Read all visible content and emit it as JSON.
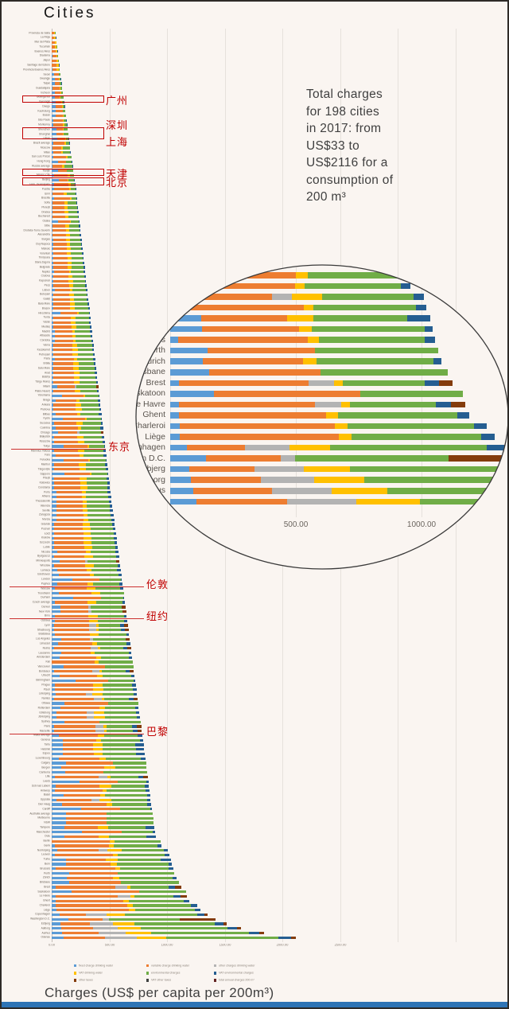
{
  "page": {
    "heading": "Cities",
    "axis_title": "Charges (US$ per capita per 200m³)",
    "footer_color": "#2E74B5",
    "background": "#FAF5F1",
    "annotation_color": "#C00000"
  },
  "title_block": {
    "text": "Total charges\nfor 198 cities\nin 2017: from\nUS$33 to\nUS$2116 for a\nconsumption of\n200 m³"
  },
  "legend": {
    "items": [
      {
        "label": "fixed charge drinking water",
        "color": "#5B9BD5"
      },
      {
        "label": "variable charge drinking water",
        "color": "#ED7D31"
      },
      {
        "label": "other charges drinking water",
        "color": "#B3B3B3"
      },
      {
        "label": "VAT drinking water",
        "color": "#FFC000"
      },
      {
        "label": "environmental charges",
        "color": "#70AD47"
      },
      {
        "label": "VAT environmental charges",
        "color": "#255E91"
      },
      {
        "label": "other taxes",
        "color": "#843C0C"
      },
      {
        "label": "VAT other taxes",
        "color": "#404040"
      },
      {
        "label": "total annual charges 200 m³",
        "color": "#632523"
      }
    ]
  },
  "annotations": {
    "color": "#C00000",
    "boxes": [
      {
        "rows": [
          15
        ],
        "labels": [
          "广州"
        ]
      },
      {
        "rows": [
          22,
          23
        ],
        "labels": [
          "深圳",
          "上海"
        ]
      },
      {
        "rows": [
          31
        ],
        "labels": [
          "天津"
        ]
      },
      {
        "rows": [
          33
        ],
        "labels": [
          "北京"
        ]
      }
    ],
    "lines": [
      {
        "row": 91,
        "label": "东京",
        "x1": 12,
        "x2": 131
      },
      {
        "row": 121,
        "label": "伦敦",
        "x1": 10,
        "x2": 179
      },
      {
        "row": 128,
        "label": "纽约",
        "x1": 10,
        "x2": 179
      },
      {
        "row": 153,
        "label": "巴黎",
        "x1": 10,
        "x2": 179
      }
    ]
  },
  "chart_data": {
    "type": "bar",
    "stacked": true,
    "orientation": "horizontal",
    "title": "Total charges for 198 cities in 2017: from US$33 to US$2116 for a consumption of 200 m³",
    "xlabel": "Charges (US$ per capita per 200m³)",
    "ylabel": "Cities",
    "xlim": [
      0,
      2500
    ],
    "x_ticks": [
      "0.00",
      "500.00",
      "1000.00",
      "1500.00",
      "2000.00",
      "2500.00"
    ],
    "inset_x_ticks": [
      "0.00",
      "500.00",
      "1000.00"
    ],
    "series_keys": [
      "fixed charge drinking water",
      "variable charge drinking water",
      "other charges drinking water",
      "VAT drinking water",
      "environmental charges",
      "VAT environmental charges",
      "other taxes"
    ],
    "colors": [
      "#5B9BD5",
      "#ED7D31",
      "#B3B3B3",
      "#FFC000",
      "#70AD47",
      "#255E91",
      "#843C0C"
    ],
    "patterns": {
      "arg": [
        0.05,
        0.56,
        0.0,
        0.3,
        0.07,
        0.02,
        0.0
      ],
      "kr": [
        0.3,
        0.49,
        0.0,
        0.03,
        0.16,
        0.02,
        0.0
      ],
      "cn": [
        0.3,
        0.38,
        0.0,
        0.03,
        0.27,
        0.02,
        0.0
      ],
      "latam": [
        0.09,
        0.63,
        0.0,
        0.08,
        0.18,
        0.02,
        0.0
      ],
      "eeu": [
        0.04,
        0.45,
        0.0,
        0.12,
        0.35,
        0.04,
        0.0
      ],
      "weu": [
        0.08,
        0.43,
        0.0,
        0.07,
        0.37,
        0.05,
        0.0
      ],
      "jp": [
        0.22,
        0.45,
        0.0,
        0.03,
        0.28,
        0.02,
        0.0
      ],
      "us": [
        0.12,
        0.37,
        0.04,
        0.0,
        0.42,
        0.0,
        0.05
      ],
      "uk": [
        0.29,
        0.39,
        0.0,
        0.0,
        0.3,
        0.02,
        0.0
      ],
      "fr": [
        0.03,
        0.46,
        0.09,
        0.03,
        0.29,
        0.05,
        0.05
      ],
      "dk": [
        0.05,
        0.17,
        0.13,
        0.12,
        0.46,
        0.05,
        0.02
      ],
      "se": [
        0.05,
        0.35,
        0.08,
        0.12,
        0.36,
        0.04,
        0.0
      ],
      "no": [
        0.1,
        0.45,
        0.0,
        0.12,
        0.33,
        0.0,
        0.0
      ],
      "fi": [
        0.12,
        0.33,
        0.0,
        0.1,
        0.36,
        0.09,
        0.0
      ],
      "ch": [
        0.12,
        0.37,
        0.0,
        0.05,
        0.43,
        0.03,
        0.0
      ],
      "be": [
        0.03,
        0.49,
        0.0,
        0.04,
        0.4,
        0.04,
        0.0
      ],
      "nl": [
        0.1,
        0.45,
        0.0,
        0.06,
        0.35,
        0.04,
        0.0
      ],
      "de": [
        0.0,
        0.53,
        0.0,
        0.05,
        0.42,
        0.0,
        0.0
      ],
      "au": [
        0.14,
        0.4,
        0.0,
        0.0,
        0.46,
        0.0,
        0.0
      ],
      "ca": [
        0.15,
        0.5,
        0.0,
        0.0,
        0.35,
        0.0,
        0.0
      ],
      "wdc": [
        0.1,
        0.21,
        0.04,
        0.0,
        0.43,
        0.0,
        0.22
      ]
    },
    "inset_first_row": 177,
    "cities": [
      [
        "Provincia de Salta",
        33,
        "arg"
      ],
      [
        "La Rioja",
        38,
        "arg"
      ],
      [
        "Mar del Plata",
        43,
        "arg"
      ],
      [
        "Tucumán",
        48,
        "arg"
      ],
      [
        "Buenos Aires",
        53,
        "arg"
      ],
      [
        "Diadema",
        58,
        "latam"
      ],
      [
        "Jaipur",
        63,
        "arg"
      ],
      [
        "Santiago del Estero",
        67,
        "arg"
      ],
      [
        "Provincia Buenos Aires",
        71,
        "arg"
      ],
      [
        "Seoul",
        76,
        "kr"
      ],
      [
        "Gwangju",
        81,
        "kr"
      ],
      [
        "Taipei",
        87,
        "kr"
      ],
      [
        "Guadalajara",
        92,
        "latam"
      ],
      [
        "Incheon",
        97,
        "kr"
      ],
      [
        "Guangzhou",
        103,
        "cn"
      ],
      [
        "Gyeonggi",
        108,
        "kr"
      ],
      [
        "Daegu",
        114,
        "kr"
      ],
      [
        "Kaohsiung",
        119,
        "kr"
      ],
      [
        "Busan",
        124,
        "kr"
      ],
      [
        "São Paulo",
        130,
        "latam"
      ],
      [
        "Monterrey",
        135,
        "latam"
      ],
      [
        "Shenzhen",
        141,
        "cn"
      ],
      [
        "Shanghai",
        146,
        "cn"
      ],
      [
        "Ulsan",
        151,
        "kr"
      ],
      [
        "Brazil average",
        157,
        "latam"
      ],
      [
        "Moscow",
        162,
        "eeu"
      ],
      [
        "Milan",
        168,
        "weu"
      ],
      [
        "San Luis Potosí",
        173,
        "latam"
      ],
      [
        "Hong Kong",
        178,
        "cn"
      ],
      [
        "Russia average",
        184,
        "eeu"
      ],
      [
        "Tianjin",
        189,
        "cn"
      ],
      [
        "Mexico City",
        195,
        "latam"
      ],
      [
        "Beijing",
        200,
        "cn"
      ],
      [
        "León, Guanajuato",
        205,
        "latam"
      ],
      [
        "Puebla",
        211,
        "latam"
      ],
      [
        "Izmir",
        214,
        "eeu"
      ],
      [
        "Brasília",
        219,
        "latam"
      ],
      [
        "Sofia",
        223,
        "eeu"
      ],
      [
        "Ploiești",
        228,
        "eeu"
      ],
      [
        "Oradea",
        232,
        "eeu"
      ],
      [
        "Bucharest",
        237,
        "eeu"
      ],
      [
        "Osaka",
        241,
        "jp"
      ],
      [
        "Sibiu",
        246,
        "eeu"
      ],
      [
        "Drobeta-Turnu Severin",
        250,
        "eeu"
      ],
      [
        "Alexandria",
        255,
        "eeu"
      ],
      [
        "Burgas",
        260,
        "eeu"
      ],
      [
        "Cluj-Napoca",
        264,
        "eeu"
      ],
      [
        "Miskolc",
        269,
        "eeu"
      ],
      [
        "Voluntari",
        273,
        "eeu"
      ],
      [
        "Timișoara",
        278,
        "eeu"
      ],
      [
        "Stara Zagora",
        282,
        "eeu"
      ],
      [
        "Belgrade",
        287,
        "eeu"
      ],
      [
        "Naples",
        291,
        "weu"
      ],
      [
        "Craiova",
        296,
        "eeu"
      ],
      [
        "Kaposvár",
        300,
        "eeu"
      ],
      [
        "Pécs",
        305,
        "eeu"
      ],
      [
        "Lisbon",
        310,
        "weu"
      ],
      [
        "Botoșani",
        314,
        "eeu"
      ],
      [
        "Galați",
        319,
        "eeu"
      ],
      [
        "Baia Mare",
        323,
        "eeu"
      ],
      [
        "Brașov",
        328,
        "eeu"
      ],
      [
        "Hiroshima",
        332,
        "jp"
      ],
      [
        "Turda",
        337,
        "eeu"
      ],
      [
        "Vaslui",
        341,
        "eeu"
      ],
      [
        "Mediaș",
        346,
        "eeu"
      ],
      [
        "Madrid",
        351,
        "weu"
      ],
      [
        "Albacete",
        355,
        "weu"
      ],
      [
        "Córdoba",
        360,
        "weu"
      ],
      [
        "Varna",
        364,
        "eeu"
      ],
      [
        "Kecskemét",
        369,
        "eeu"
      ],
      [
        "Petroșani",
        373,
        "eeu"
      ],
      [
        "Parla",
        378,
        "weu"
      ],
      [
        "Brăila",
        382,
        "eeu"
      ],
      [
        "Satu Mare",
        387,
        "eeu"
      ],
      [
        "Arad",
        391,
        "eeu"
      ],
      [
        "Bistrița",
        396,
        "eeu"
      ],
      [
        "Târgu Mureș",
        401,
        "eeu"
      ],
      [
        "Miami",
        405,
        "us"
      ],
      [
        "Piatra Neamț",
        410,
        "eeu"
      ],
      [
        "Yokohama",
        414,
        "jp"
      ],
      [
        "Braga",
        419,
        "weu"
      ],
      [
        "Ankara",
        423,
        "eeu"
      ],
      [
        "Prahova",
        428,
        "eeu"
      ],
      [
        "Bilbao",
        432,
        "weu"
      ],
      [
        "Kyoto",
        437,
        "jp"
      ],
      [
        "Suceava",
        442,
        "eeu"
      ],
      [
        "Coimbra",
        446,
        "weu"
      ],
      [
        "Chicago",
        451,
        "us"
      ],
      [
        "Białystok",
        455,
        "eeu"
      ],
      [
        "Rzeszów",
        460,
        "eeu"
      ],
      [
        "Tokyo",
        464,
        "jp"
      ],
      [
        "Râmnicu Vâlcea",
        469,
        "eeu"
      ],
      [
        "Faro",
        473,
        "weu"
      ],
      [
        "Fukuoka",
        478,
        "jp"
      ],
      [
        "Maribor",
        482,
        "eeu"
      ],
      [
        "Târgoviște",
        487,
        "eeu"
      ],
      [
        "Sapporo",
        492,
        "jp"
      ],
      [
        "Pitești",
        496,
        "eeu"
      ],
      [
        "Katowice",
        501,
        "eeu"
      ],
      [
        "Constanța",
        506,
        "eeu"
      ],
      [
        "Porto",
        511,
        "weu"
      ],
      [
        "Athens",
        516,
        "weu"
      ],
      [
        "Thessaloniki",
        521,
        "weu"
      ],
      [
        "Valencia",
        527,
        "weu"
      ],
      [
        "Seville",
        532,
        "weu"
      ],
      [
        "Zaragoza",
        537,
        "weu"
      ],
      [
        "Murcia",
        542,
        "weu"
      ],
      [
        "Gdańsk",
        547,
        "eeu"
      ],
      [
        "Poznań",
        553,
        "eeu"
      ],
      [
        "Łódź",
        558,
        "eeu"
      ],
      [
        "Kraków",
        563,
        "eeu"
      ],
      [
        "Szczecin",
        568,
        "eeu"
      ],
      [
        "Lublin",
        573,
        "eeu"
      ],
      [
        "Nicosia",
        579,
        "weu"
      ],
      [
        "Bydgoszcz",
        584,
        "eeu"
      ],
      [
        "Minneapolis",
        589,
        "us"
      ],
      [
        "Wrocław",
        594,
        "eeu"
      ],
      [
        "Larnaca",
        599,
        "weu"
      ],
      [
        "Eindhoven",
        605,
        "nl"
      ],
      [
        "London",
        610,
        "uk"
      ],
      [
        "Paphos",
        615,
        "weu"
      ],
      [
        "Warsaw",
        620,
        "eeu"
      ],
      [
        "Trondheim",
        625,
        "no"
      ],
      [
        "Durham",
        631,
        "uk"
      ],
      [
        "Czech average",
        636,
        "eeu"
      ],
      [
        "Denver",
        641,
        "us"
      ],
      [
        "New York",
        646,
        "us"
      ],
      [
        "Brno",
        651,
        "eeu"
      ],
      [
        "Ostrava",
        657,
        "eeu"
      ],
      [
        "Lyon",
        662,
        "fr"
      ],
      [
        "Strasbourg",
        667,
        "fr"
      ],
      [
        "Bratislava",
        672,
        "eeu"
      ],
      [
        "Los Angeles",
        677,
        "us"
      ],
      [
        "Limassol",
        683,
        "weu"
      ],
      [
        "Reims",
        688,
        "fr"
      ],
      [
        "Lausanne",
        693,
        "ch"
      ],
      [
        "Amsterdam",
        698,
        "nl"
      ],
      [
        "Kiel",
        703,
        "de"
      ],
      [
        "Vancouver",
        709,
        "ca"
      ],
      [
        "Bordeaux",
        714,
        "fr"
      ],
      [
        "Utrecht",
        719,
        "nl"
      ],
      [
        "Birmingham",
        724,
        "uk"
      ],
      [
        "Prague",
        729,
        "eeu"
      ],
      [
        "Plzeň",
        735,
        "eeu"
      ],
      [
        "Linköping",
        740,
        "se"
      ],
      [
        "Nantes",
        745,
        "fr"
      ],
      [
        "Ottawa",
        750,
        "ca"
      ],
      [
        "Rotterdam",
        755,
        "nl"
      ],
      [
        "Göteborg",
        761,
        "se"
      ],
      [
        "Jönköping",
        766,
        "se"
      ],
      [
        "Sydney",
        771,
        "au"
      ],
      [
        "Paris",
        776,
        "fr"
      ],
      [
        "Marseille",
        781,
        "fr"
      ],
      [
        "Malta average",
        787,
        "weu"
      ],
      [
        "Geneva",
        792,
        "ch"
      ],
      [
        "Tartu",
        797,
        "fi"
      ],
      [
        "Helsinki",
        802,
        "fi"
      ],
      [
        "Espoo",
        807,
        "fi"
      ],
      [
        "Luxembourg",
        813,
        "weu"
      ],
      [
        "Calgary",
        818,
        "ca"
      ],
      [
        "Bergen",
        823,
        "no"
      ],
      [
        "Canberra",
        828,
        "au"
      ],
      [
        "Lille",
        833,
        "fr"
      ],
      [
        "Leeds",
        839,
        "uk"
      ],
      [
        "Ústí nad Labem",
        844,
        "eeu"
      ],
      [
        "Antwerp",
        849,
        "be"
      ],
      [
        "Basel",
        854,
        "ch"
      ],
      [
        "Uppsala",
        859,
        "se"
      ],
      [
        "Den Haag",
        865,
        "nl"
      ],
      [
        "Cardiff",
        870,
        "uk"
      ],
      [
        "Australia average",
        875,
        "au"
      ],
      [
        "Melbourne",
        880,
        "au"
      ],
      [
        "NSW",
        885,
        "au"
      ],
      [
        "Tampere",
        891,
        "fi"
      ],
      [
        "Manchester",
        896,
        "uk"
      ],
      [
        "Oulu",
        901,
        "fi"
      ],
      [
        "Berlin",
        945,
        "de"
      ],
      [
        "Genk",
        955,
        "be"
      ],
      [
        "Norrköping",
        1010,
        "se"
      ],
      [
        "Leuven",
        1020,
        "be"
      ],
      [
        "Turku",
        1035,
        "fi"
      ],
      [
        "Bern",
        1045,
        "ch"
      ],
      [
        "Brussels",
        1055,
        "be"
      ],
      [
        "Perth",
        1065,
        "au"
      ],
      [
        "Zürich",
        1080,
        "ch"
      ],
      [
        "Brisbane",
        1105,
        "au"
      ],
      [
        "Brest",
        1125,
        "fr"
      ],
      [
        "Saskatoon",
        1165,
        "ca"
      ],
      [
        "Le Havre",
        1175,
        "fr"
      ],
      [
        "Ghent",
        1190,
        "be"
      ],
      [
        "Charleroi",
        1260,
        "be"
      ],
      [
        "Liège",
        1290,
        "be"
      ],
      [
        "Copenhagen",
        1355,
        "dk"
      ],
      [
        "Washington D.C.",
        1420,
        "wdc"
      ],
      [
        "Esbjerg",
        1520,
        "dk"
      ],
      [
        "Aalborg",
        1640,
        "dk"
      ],
      [
        "Aarhus",
        1840,
        "dk"
      ],
      [
        "Odense",
        2116,
        "dk"
      ]
    ]
  }
}
